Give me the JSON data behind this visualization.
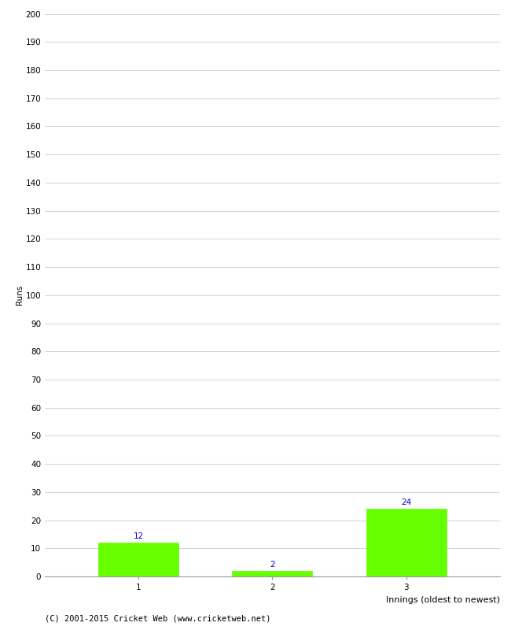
{
  "categories": [
    "1",
    "2",
    "3"
  ],
  "values": [
    12,
    2,
    24
  ],
  "bar_color": "#66ff00",
  "bar_edge_color": "#66ff00",
  "xlabel": "Innings (oldest to newest)",
  "ylabel": "Runs",
  "ylim": [
    0,
    200
  ],
  "yticks": [
    0,
    10,
    20,
    30,
    40,
    50,
    60,
    70,
    80,
    90,
    100,
    110,
    120,
    130,
    140,
    150,
    160,
    170,
    180,
    190,
    200
  ],
  "annotation_color": "#0000cc",
  "annotation_fontsize": 7.5,
  "footer": "(C) 2001-2015 Cricket Web (www.cricketweb.net)",
  "footer_fontsize": 7.5,
  "background_color": "#ffffff",
  "grid_color": "#cccccc",
  "ylabel_fontsize": 7.5,
  "xlabel_fontsize": 8,
  "tick_fontsize": 7.5,
  "bar_width": 0.6
}
